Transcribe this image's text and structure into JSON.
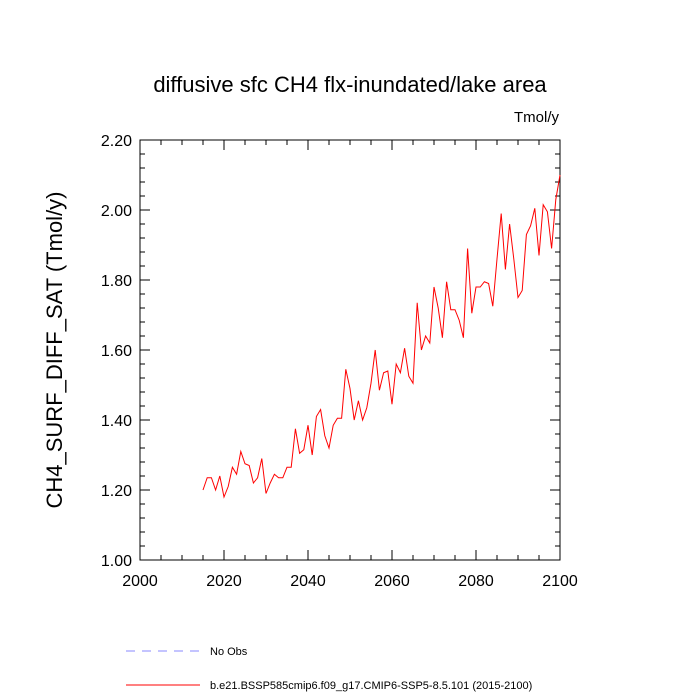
{
  "chart_data": {
    "type": "line",
    "title": "diffusive sfc CH4 flx-inundated/lake area",
    "units": "Tmol/y",
    "ylabel": "CH4_SURF_DIFF_SAT  (Tmol/y)",
    "xlabel": "",
    "xlim": [
      2000,
      2100
    ],
    "ylim": [
      1.0,
      2.2
    ],
    "x_ticks": [
      2000,
      2020,
      2040,
      2060,
      2080,
      2100
    ],
    "x_tick_labels": [
      "2000",
      "2020",
      "2040",
      "2060",
      "2080",
      "2100"
    ],
    "y_ticks": [
      1.0,
      1.2,
      1.4,
      1.6,
      1.8,
      2.0,
      2.2
    ],
    "y_tick_labels": [
      "1.00",
      "1.20",
      "1.40",
      "1.60",
      "1.80",
      "2.00",
      "2.20"
    ],
    "grid": false,
    "legend_position": "bottom",
    "legend": [
      {
        "label": "No Obs",
        "color": "#8888ff",
        "style": "dashed"
      },
      {
        "label": "b.e21.BSSP585cmip6.f09_g17.CMIP6-SSP5-8.5.101 (2015-2100)",
        "color": "#ff0000",
        "style": "solid"
      }
    ],
    "series": [
      {
        "name": "b.e21.BSSP585cmip6.f09_g17.CMIP6-SSP5-8.5.101 (2015-2100)",
        "color": "#ff0000",
        "x": [
          2015,
          2016,
          2017,
          2018,
          2019,
          2020,
          2021,
          2022,
          2023,
          2024,
          2025,
          2026,
          2027,
          2028,
          2029,
          2030,
          2031,
          2032,
          2033,
          2034,
          2035,
          2036,
          2037,
          2038,
          2039,
          2040,
          2041,
          2042,
          2043,
          2044,
          2045,
          2046,
          2047,
          2048,
          2049,
          2050,
          2051,
          2052,
          2053,
          2054,
          2055,
          2056,
          2057,
          2058,
          2059,
          2060,
          2061,
          2062,
          2063,
          2064,
          2065,
          2066,
          2067,
          2068,
          2069,
          2070,
          2071,
          2072,
          2073,
          2074,
          2075,
          2076,
          2077,
          2078,
          2079,
          2080,
          2081,
          2082,
          2083,
          2084,
          2085,
          2086,
          2087,
          2088,
          2089,
          2090,
          2091,
          2092,
          2093,
          2094,
          2095,
          2096,
          2097,
          2098,
          2099,
          2100
        ],
        "y": [
          1.2,
          1.235,
          1.235,
          1.2,
          1.24,
          1.18,
          1.21,
          1.265,
          1.245,
          1.31,
          1.275,
          1.27,
          1.22,
          1.235,
          1.29,
          1.19,
          1.22,
          1.245,
          1.235,
          1.235,
          1.265,
          1.265,
          1.375,
          1.305,
          1.315,
          1.385,
          1.3,
          1.41,
          1.43,
          1.355,
          1.32,
          1.385,
          1.405,
          1.405,
          1.545,
          1.49,
          1.4,
          1.455,
          1.4,
          1.435,
          1.505,
          1.6,
          1.485,
          1.535,
          1.54,
          1.445,
          1.56,
          1.535,
          1.605,
          1.525,
          1.505,
          1.735,
          1.6,
          1.64,
          1.62,
          1.78,
          1.72,
          1.635,
          1.795,
          1.715,
          1.715,
          1.685,
          1.635,
          1.89,
          1.705,
          1.78,
          1.78,
          1.795,
          1.79,
          1.725,
          1.86,
          1.99,
          1.83,
          1.96,
          1.86,
          1.75,
          1.77,
          1.93,
          1.955,
          2.005,
          1.87,
          2.015,
          1.995,
          1.89,
          2.03,
          2.1
        ]
      }
    ]
  }
}
